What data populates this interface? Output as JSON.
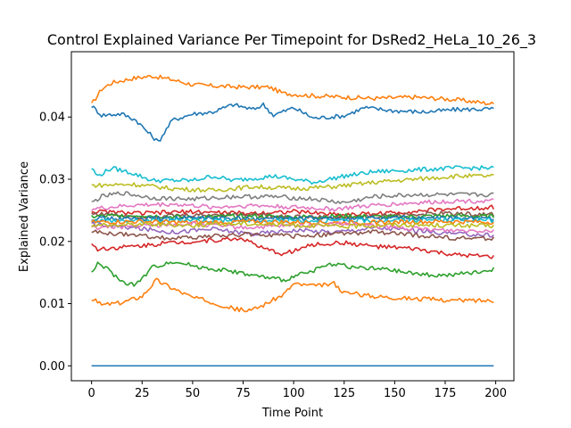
{
  "chart_data": {
    "type": "line",
    "title": "Control Explained Variance Per Timepoint for DsRed2_HeLa_10_26_3",
    "xlabel": "Time Point",
    "ylabel": "Explained Variance",
    "xlim": [
      -10,
      209
    ],
    "ylim": [
      -0.0024,
      0.0505
    ],
    "x_ticks": [
      0,
      25,
      50,
      75,
      100,
      125,
      150,
      175,
      200
    ],
    "x_tick_labels": [
      "0",
      "25",
      "50",
      "75",
      "100",
      "125",
      "150",
      "175",
      "200"
    ],
    "y_ticks": [
      0.0,
      0.01,
      0.02,
      0.03,
      0.04
    ],
    "y_tick_labels": [
      "0.00",
      "0.01",
      "0.02",
      "0.03",
      "0.04"
    ],
    "grid": false,
    "x_range": [
      0,
      199
    ],
    "series": [
      {
        "color": "#ff7f0e",
        "points": [
          [
            0,
            0.042
          ],
          [
            5,
            0.0445
          ],
          [
            10,
            0.0455
          ],
          [
            20,
            0.0462
          ],
          [
            30,
            0.0466
          ],
          [
            40,
            0.046
          ],
          [
            50,
            0.0452
          ],
          [
            60,
            0.045
          ],
          [
            75,
            0.0448
          ],
          [
            88,
            0.0448
          ],
          [
            95,
            0.0438
          ],
          [
            110,
            0.0434
          ],
          [
            125,
            0.0432
          ],
          [
            140,
            0.043
          ],
          [
            160,
            0.0432
          ],
          [
            180,
            0.0428
          ],
          [
            199,
            0.0421
          ]
        ]
      },
      {
        "color": "#1f77b4",
        "points": [
          [
            0,
            0.0418
          ],
          [
            5,
            0.0403
          ],
          [
            15,
            0.0405
          ],
          [
            22,
            0.0395
          ],
          [
            28,
            0.0375
          ],
          [
            33,
            0.036
          ],
          [
            40,
            0.0395
          ],
          [
            50,
            0.0405
          ],
          [
            60,
            0.0408
          ],
          [
            70,
            0.042
          ],
          [
            80,
            0.0412
          ],
          [
            85,
            0.042
          ],
          [
            90,
            0.0403
          ],
          [
            100,
            0.0415
          ],
          [
            110,
            0.0398
          ],
          [
            125,
            0.0402
          ],
          [
            135,
            0.0415
          ],
          [
            150,
            0.041
          ],
          [
            165,
            0.0408
          ],
          [
            180,
            0.0412
          ],
          [
            199,
            0.0413
          ]
        ]
      },
      {
        "color": "#17becf",
        "points": [
          [
            0,
            0.0318
          ],
          [
            3,
            0.0305
          ],
          [
            10,
            0.0318
          ],
          [
            20,
            0.031
          ],
          [
            30,
            0.0298
          ],
          [
            50,
            0.0298
          ],
          [
            60,
            0.0305
          ],
          [
            70,
            0.0298
          ],
          [
            90,
            0.0305
          ],
          [
            110,
            0.0295
          ],
          [
            125,
            0.0305
          ],
          [
            140,
            0.0312
          ],
          [
            160,
            0.0315
          ],
          [
            180,
            0.0318
          ],
          [
            199,
            0.0318
          ]
        ]
      },
      {
        "color": "#bcbd22",
        "points": [
          [
            0,
            0.029
          ],
          [
            20,
            0.0292
          ],
          [
            40,
            0.0285
          ],
          [
            60,
            0.0282
          ],
          [
            80,
            0.0288
          ],
          [
            100,
            0.0285
          ],
          [
            120,
            0.0288
          ],
          [
            140,
            0.0295
          ],
          [
            160,
            0.03
          ],
          [
            180,
            0.0305
          ],
          [
            199,
            0.0305
          ]
        ]
      },
      {
        "color": "#7f7f7f",
        "points": [
          [
            0,
            0.0262
          ],
          [
            5,
            0.0272
          ],
          [
            15,
            0.0278
          ],
          [
            30,
            0.027
          ],
          [
            50,
            0.0268
          ],
          [
            70,
            0.0272
          ],
          [
            90,
            0.0272
          ],
          [
            110,
            0.0268
          ],
          [
            125,
            0.0262
          ],
          [
            140,
            0.0272
          ],
          [
            160,
            0.0275
          ],
          [
            180,
            0.0275
          ],
          [
            199,
            0.0275
          ]
        ]
      },
      {
        "color": "#e377c2",
        "points": [
          [
            0,
            0.0252
          ],
          [
            20,
            0.0258
          ],
          [
            40,
            0.026
          ],
          [
            60,
            0.0255
          ],
          [
            80,
            0.0258
          ],
          [
            100,
            0.0255
          ],
          [
            120,
            0.0252
          ],
          [
            140,
            0.0258
          ],
          [
            160,
            0.0262
          ],
          [
            180,
            0.0265
          ],
          [
            199,
            0.0265
          ]
        ]
      },
      {
        "color": "#d62728",
        "points": [
          [
            0,
            0.0248
          ],
          [
            25,
            0.0245
          ],
          [
            50,
            0.0248
          ],
          [
            75,
            0.0245
          ],
          [
            100,
            0.0248
          ],
          [
            125,
            0.0243
          ],
          [
            150,
            0.0246
          ],
          [
            175,
            0.0252
          ],
          [
            199,
            0.0255
          ]
        ]
      },
      {
        "color": "#8c564b",
        "points": [
          [
            0,
            0.0245
          ],
          [
            25,
            0.024
          ],
          [
            50,
            0.0242
          ],
          [
            75,
            0.0244
          ],
          [
            100,
            0.024
          ],
          [
            125,
            0.0238
          ],
          [
            150,
            0.0242
          ],
          [
            175,
            0.0245
          ],
          [
            199,
            0.0243
          ]
        ]
      },
      {
        "color": "#2ca02c",
        "points": [
          [
            0,
            0.024
          ],
          [
            25,
            0.0242
          ],
          [
            50,
            0.0238
          ],
          [
            75,
            0.0241
          ],
          [
            100,
            0.0239
          ],
          [
            125,
            0.0241
          ],
          [
            150,
            0.0239
          ],
          [
            175,
            0.0241
          ],
          [
            199,
            0.024
          ]
        ]
      },
      {
        "color": "#1f77b4",
        "points": [
          [
            0,
            0.0237
          ],
          [
            25,
            0.0236
          ],
          [
            50,
            0.0238
          ],
          [
            75,
            0.0236
          ],
          [
            100,
            0.0237
          ],
          [
            125,
            0.0236
          ],
          [
            150,
            0.0238
          ],
          [
            175,
            0.0237
          ],
          [
            199,
            0.0237
          ]
        ]
      },
      {
        "color": "#17becf",
        "points": [
          [
            0,
            0.0234
          ],
          [
            25,
            0.0233
          ],
          [
            50,
            0.0235
          ],
          [
            75,
            0.0233
          ],
          [
            100,
            0.0234
          ],
          [
            125,
            0.0233
          ],
          [
            150,
            0.0234
          ],
          [
            175,
            0.0235
          ],
          [
            199,
            0.0234
          ]
        ]
      },
      {
        "color": "#ff7f0e",
        "points": [
          [
            0,
            0.0231
          ],
          [
            25,
            0.0232
          ],
          [
            50,
            0.023
          ],
          [
            75,
            0.0232
          ],
          [
            100,
            0.0231
          ],
          [
            125,
            0.023
          ],
          [
            150,
            0.0231
          ],
          [
            175,
            0.0232
          ],
          [
            199,
            0.0231
          ]
        ]
      },
      {
        "color": "#9467bd",
        "points": [
          [
            0,
            0.0228
          ],
          [
            20,
            0.0222
          ],
          [
            40,
            0.0215
          ],
          [
            60,
            0.022
          ],
          [
            80,
            0.0212
          ],
          [
            100,
            0.0218
          ],
          [
            120,
            0.0215
          ],
          [
            140,
            0.0222
          ],
          [
            160,
            0.0218
          ],
          [
            180,
            0.0212
          ],
          [
            199,
            0.021
          ]
        ]
      },
      {
        "color": "#e377c2",
        "points": [
          [
            0,
            0.0222
          ],
          [
            25,
            0.0225
          ],
          [
            50,
            0.0228
          ],
          [
            75,
            0.0222
          ],
          [
            100,
            0.0225
          ],
          [
            125,
            0.0228
          ],
          [
            150,
            0.0222
          ],
          [
            175,
            0.0218
          ],
          [
            199,
            0.0218
          ]
        ]
      },
      {
        "color": "#bcbd22",
        "points": [
          [
            0,
            0.0225
          ],
          [
            25,
            0.0228
          ],
          [
            50,
            0.0226
          ],
          [
            75,
            0.0229
          ],
          [
            100,
            0.0226
          ],
          [
            125,
            0.0224
          ],
          [
            150,
            0.0227
          ],
          [
            175,
            0.0226
          ],
          [
            199,
            0.0225
          ]
        ]
      },
      {
        "color": "#8c564b",
        "points": [
          [
            0,
            0.0215
          ],
          [
            20,
            0.021
          ],
          [
            40,
            0.0205
          ],
          [
            60,
            0.0208
          ],
          [
            80,
            0.0212
          ],
          [
            100,
            0.0208
          ],
          [
            120,
            0.0212
          ],
          [
            140,
            0.0215
          ],
          [
            160,
            0.021
          ],
          [
            180,
            0.0205
          ],
          [
            199,
            0.0205
          ]
        ]
      },
      {
        "color": "#d62728",
        "points": [
          [
            0,
            0.0195
          ],
          [
            3,
            0.0188
          ],
          [
            20,
            0.0192
          ],
          [
            40,
            0.0198
          ],
          [
            60,
            0.0202
          ],
          [
            75,
            0.0205
          ],
          [
            85,
            0.0188
          ],
          [
            95,
            0.018
          ],
          [
            110,
            0.0195
          ],
          [
            125,
            0.0198
          ],
          [
            140,
            0.0192
          ],
          [
            160,
            0.0188
          ],
          [
            180,
            0.0178
          ],
          [
            199,
            0.0175
          ]
        ]
      },
      {
        "color": "#2ca02c",
        "points": [
          [
            0,
            0.0148
          ],
          [
            3,
            0.0165
          ],
          [
            8,
            0.0155
          ],
          [
            15,
            0.0135
          ],
          [
            22,
            0.013
          ],
          [
            30,
            0.0158
          ],
          [
            40,
            0.0168
          ],
          [
            55,
            0.0158
          ],
          [
            70,
            0.0152
          ],
          [
            80,
            0.0145
          ],
          [
            95,
            0.0138
          ],
          [
            105,
            0.0148
          ],
          [
            120,
            0.0165
          ],
          [
            130,
            0.0158
          ],
          [
            145,
            0.0155
          ],
          [
            160,
            0.0148
          ],
          [
            175,
            0.0145
          ],
          [
            190,
            0.015
          ],
          [
            199,
            0.0155
          ]
        ]
      },
      {
        "color": "#ff7f0e",
        "points": [
          [
            0,
            0.0108
          ],
          [
            5,
            0.0098
          ],
          [
            15,
            0.0102
          ],
          [
            25,
            0.0112
          ],
          [
            32,
            0.0138
          ],
          [
            40,
            0.0125
          ],
          [
            50,
            0.011
          ],
          [
            60,
            0.0102
          ],
          [
            70,
            0.0092
          ],
          [
            78,
            0.0088
          ],
          [
            85,
            0.0098
          ],
          [
            95,
            0.0115
          ],
          [
            100,
            0.0132
          ],
          [
            110,
            0.0128
          ],
          [
            120,
            0.0132
          ],
          [
            125,
            0.0118
          ],
          [
            140,
            0.0112
          ],
          [
            160,
            0.0108
          ],
          [
            180,
            0.0105
          ],
          [
            199,
            0.0105
          ]
        ]
      },
      {
        "color": "#1f77b4",
        "points": [
          [
            0,
            0.0
          ],
          [
            199,
            0.0
          ]
        ]
      }
    ]
  }
}
